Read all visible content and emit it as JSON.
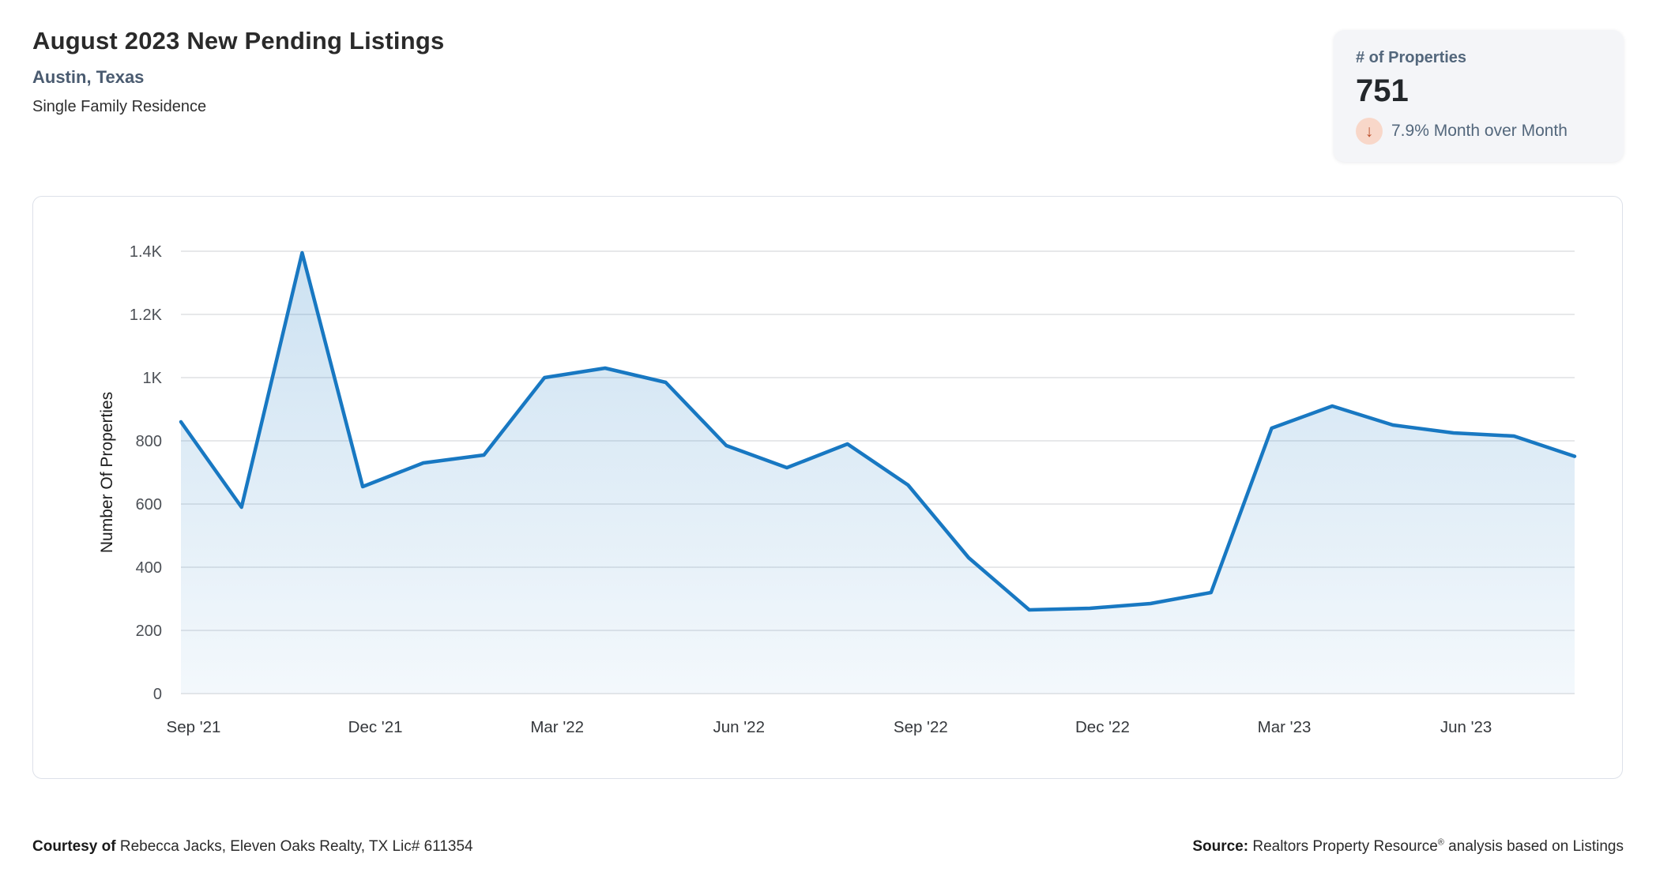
{
  "header": {
    "title": "August 2023 New Pending Listings",
    "subtitle": "Austin, Texas",
    "property_type": "Single Family Residence"
  },
  "stat_card": {
    "label": "# of Properties",
    "value": "751",
    "change_text": "7.9% Month over Month",
    "change_direction": "down",
    "arrow_glyph": "↓",
    "colors": {
      "card_bg": "#f4f5f8",
      "arrow_badge_bg": "#f8d7c9",
      "arrow": "#bb4f2c",
      "label_text": "#53677c"
    }
  },
  "chart_data": {
    "type": "area",
    "title": "",
    "xlabel": "",
    "ylabel": "Number Of Properties",
    "categories": [
      "Sep '21",
      "Oct '21",
      "Nov '21",
      "Dec '21",
      "Jan '22",
      "Feb '22",
      "Mar '22",
      "Apr '22",
      "May '22",
      "Jun '22",
      "Jul '22",
      "Aug '22",
      "Sep '22",
      "Oct '22",
      "Nov '22",
      "Dec '22",
      "Jan '23",
      "Feb '23",
      "Mar '23",
      "Apr '23",
      "May '23",
      "Jun '23",
      "Jul '23",
      "Aug '23"
    ],
    "values": [
      860,
      590,
      1395,
      655,
      730,
      755,
      1000,
      1030,
      985,
      785,
      715,
      790,
      660,
      430,
      265,
      270,
      285,
      320,
      840,
      910,
      850,
      825,
      815,
      751
    ],
    "x_tick_labels": [
      "Sep '21",
      "Dec '21",
      "Mar '22",
      "Jun '22",
      "Sep '22",
      "Dec '22",
      "Mar '23",
      "Jun '23"
    ],
    "x_tick_every": 3,
    "y_ticks": {
      "values": [
        0,
        200,
        400,
        600,
        800,
        1000,
        1200,
        1400
      ],
      "labels": [
        "0",
        "200",
        "400",
        "600",
        "800",
        "1K",
        "1.2K",
        "1.4K"
      ]
    },
    "ylim": [
      0,
      1400
    ],
    "grid": true,
    "legend": false,
    "line_color": "#1878c2",
    "grid_color": "#dfe1e4",
    "tick_label_color": "#4c5056",
    "x_label_color": "#35383c"
  },
  "footer": {
    "courtesy_label": "Courtesy of",
    "courtesy_text": " Rebecca Jacks, Eleven Oaks Realty, TX Lic# 611354",
    "source_label": "Source:",
    "source_text_1": " Realtors Property Resource",
    "source_reg": "®",
    "source_text_2": " analysis based on Listings"
  }
}
